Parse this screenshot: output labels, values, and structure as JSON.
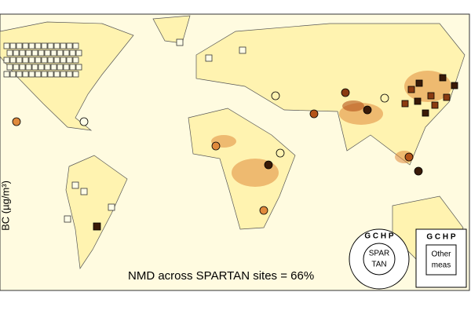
{
  "axis_label": "BC (µg/m³)",
  "annotation": "NMD across SPARTAN sites = 66%",
  "legend": {
    "circle": {
      "outer": "G C H P",
      "inner_line1": "SPAR",
      "inner_line2": "TAN"
    },
    "square": {
      "outer": "G C H P",
      "inner_line1": "Other",
      "inner_line2": "meas"
    }
  }
}
